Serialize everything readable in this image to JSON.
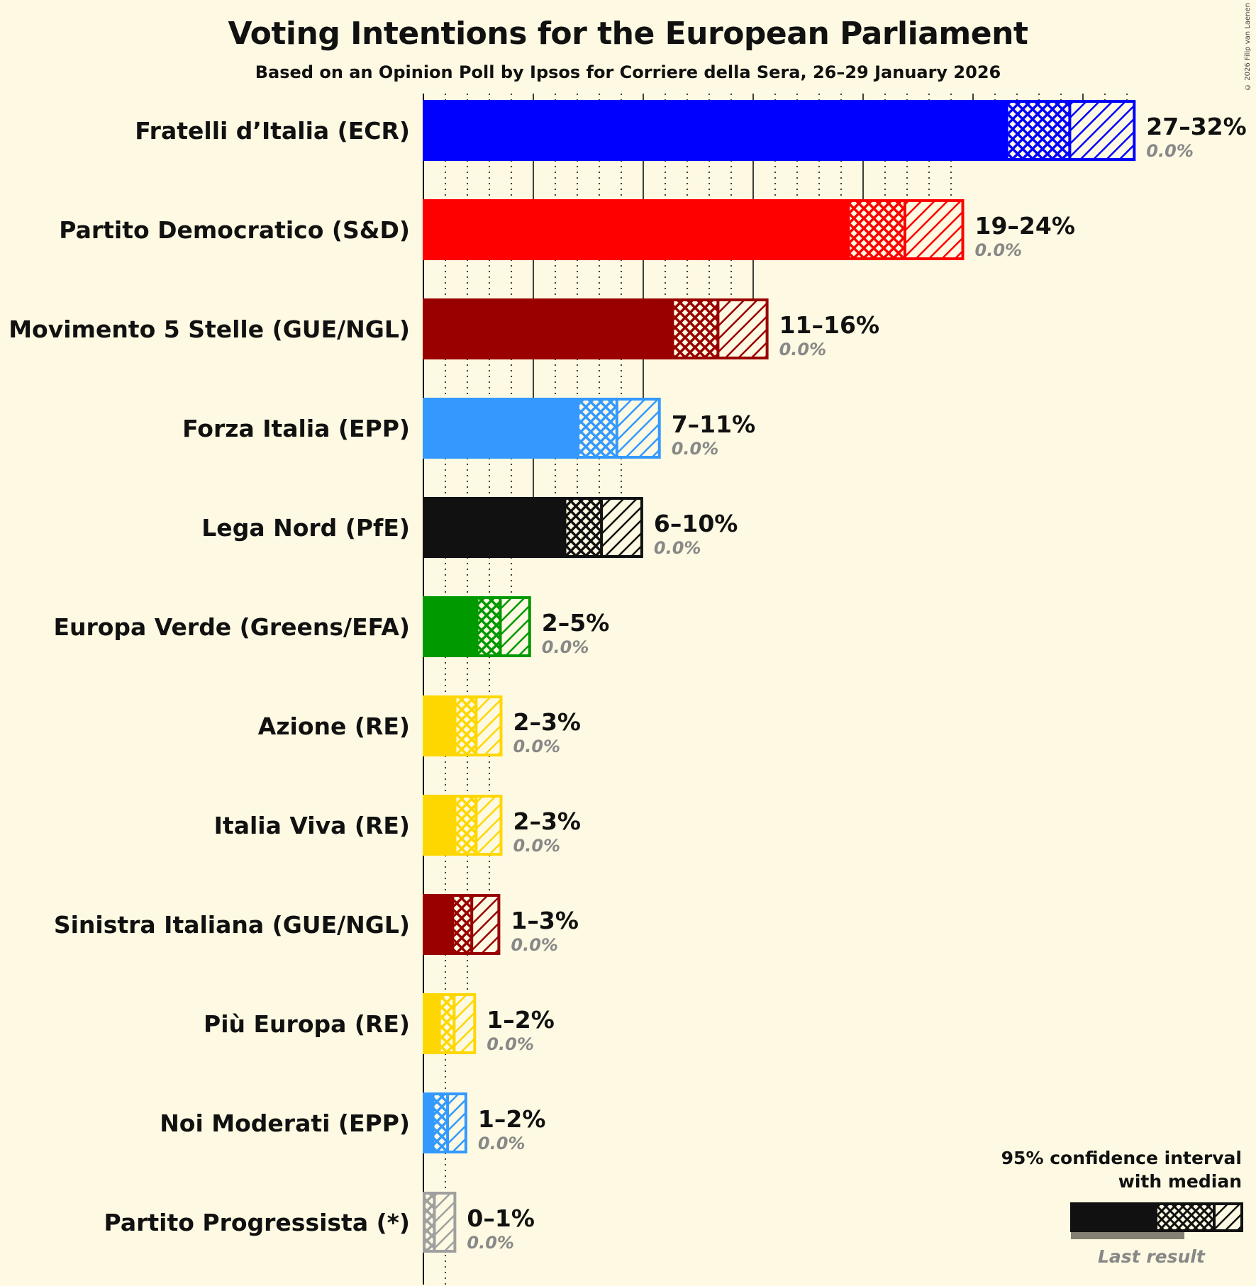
{
  "header": {
    "title": "Voting Intentions for the European Parliament",
    "subtitle": "Based on an Opinion Poll by Ipsos for Corriere della Sera, 26–29 January 2026",
    "copyright": "© 2026 Filip van Laenen"
  },
  "legend": {
    "line1": "95% confidence interval",
    "line2": "with median",
    "last_result": "Last result"
  },
  "chart_data": {
    "type": "bar",
    "orientation": "horizontal",
    "title": "Voting Intentions for the European Parliament",
    "subtitle": "Based on an Opinion Poll by Ipsos for Corriere della Sera, 26–29 January 2026",
    "xlabel": "",
    "ylabel": "",
    "grid": {
      "major_every_pct": 5,
      "minor_every_pct": 1
    },
    "categories": [
      "Fratelli d’Italia (ECR)",
      "Partito Democratico (S&D)",
      "Movimento 5 Stelle (GUE/NGL)",
      "Forza Italia (EPP)",
      "Lega Nord (PfE)",
      "Europa Verde (Greens/EFA)",
      "Azione (RE)",
      "Italia Viva (RE)",
      "Sinistra Italiana (GUE/NGL)",
      "Più Europa (RE)",
      "Noi Moderati (EPP)",
      "Partito Progressista (*)"
    ],
    "series": [
      {
        "name": "CI low",
        "values": [
          26.6,
          19.4,
          11.4,
          7.1,
          6.5,
          2.5,
          1.5,
          1.5,
          1.4,
          0.8,
          0.5,
          0.1
        ]
      },
      {
        "name": "Median",
        "values": [
          29.4,
          21.9,
          13.4,
          8.8,
          8.1,
          3.5,
          2.4,
          2.4,
          2.2,
          1.4,
          1.1,
          0.5
        ]
      },
      {
        "name": "CI high",
        "values": [
          32.3,
          24.5,
          15.6,
          10.7,
          9.9,
          4.8,
          3.5,
          3.5,
          3.4,
          2.3,
          1.9,
          1.4
        ]
      },
      {
        "name": "Last result",
        "values": [
          0.0,
          0.0,
          0.0,
          0.0,
          0.0,
          0.0,
          0.0,
          0.0,
          0.0,
          0.0,
          0.0,
          0.0
        ]
      }
    ],
    "range_labels": [
      "27–32%",
      "19–24%",
      "11–16%",
      "7–11%",
      "6–10%",
      "2–5%",
      "2–3%",
      "2–3%",
      "1–3%",
      "1–2%",
      "1–2%",
      "0–1%"
    ],
    "last_labels": [
      "0.0%",
      "0.0%",
      "0.0%",
      "0.0%",
      "0.0%",
      "0.0%",
      "0.0%",
      "0.0%",
      "0.0%",
      "0.0%",
      "0.0%",
      "0.0%"
    ],
    "colors": [
      "#0000ff",
      "#ff0000",
      "#990000",
      "#3399ff",
      "#111111",
      "#009900",
      "#ffd700",
      "#ffd700",
      "#990000",
      "#ffd700",
      "#3399ff",
      "#a0a0a0"
    ]
  }
}
